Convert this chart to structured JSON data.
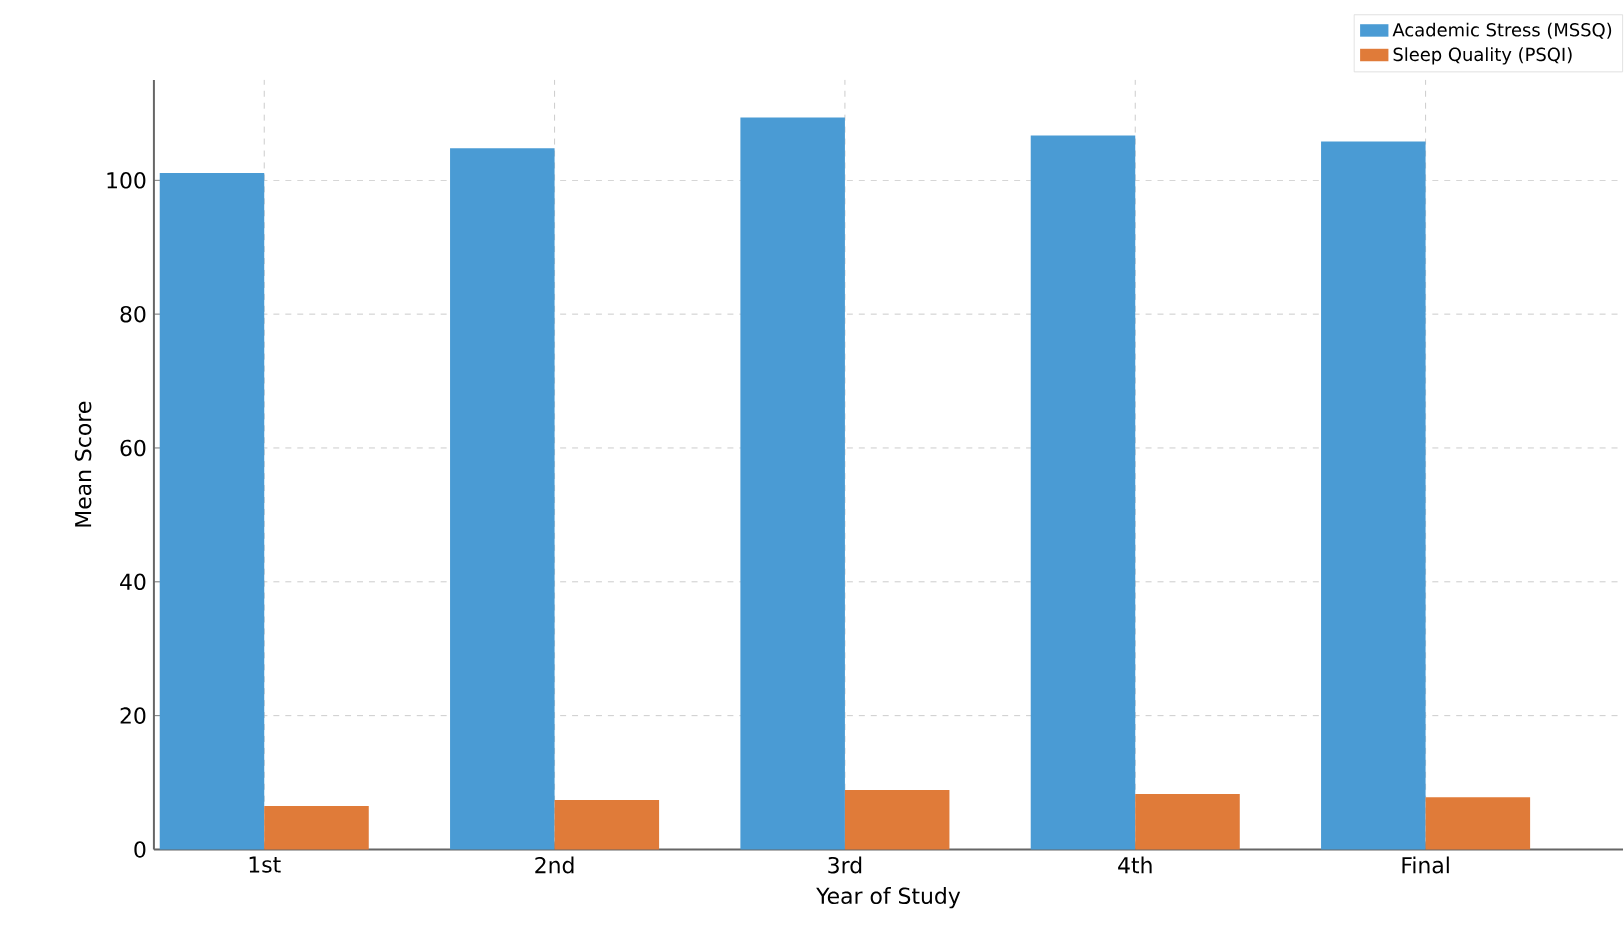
{
  "chart_data": {
    "type": "bar",
    "xlabel": "Year of Study",
    "ylabel": "Mean Score",
    "categories": [
      "1st",
      "2nd",
      "3rd",
      "4th",
      "Final"
    ],
    "series": [
      {
        "name": "Academic Stress (MSSQ)",
        "color": "#4a9bd4",
        "values": [
          101.1,
          104.8,
          109.4,
          106.7,
          105.8
        ]
      },
      {
        "name": "Sleep Quality (PSQI)",
        "color": "#e07b39",
        "values": [
          6.5,
          7.4,
          8.9,
          8.3,
          7.8
        ]
      }
    ],
    "ylim": [
      0,
      115
    ],
    "yticks": [
      0,
      20,
      40,
      60,
      80,
      100
    ],
    "grid": true,
    "legend": "top right"
  }
}
